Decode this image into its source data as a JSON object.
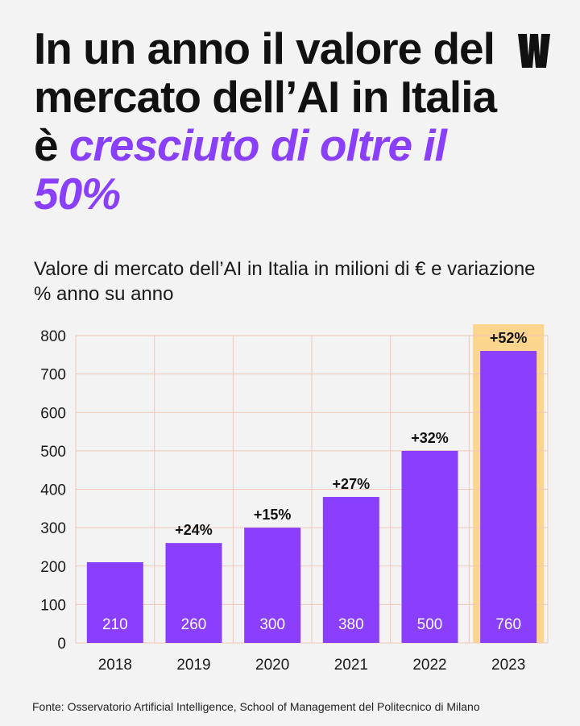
{
  "headline": {
    "part1": "In un anno il valore del mercato dell’AI in Italia è ",
    "highlight": "cresciuto di oltre il 50%"
  },
  "subtitle": "Valore di mercato dell’AI in Italia in milioni di € e variazione % anno su anno",
  "source": "Fonte: Osservatorio Artificial Intelligence, School of Management del Politecnico di Milano",
  "logo_icon": "brand-logo-icon",
  "colors": {
    "accent": "#8a3ffc",
    "bar": "#8a3ffc",
    "highlight_band": "#fbd48e",
    "grid": "#f2c7b8",
    "background": "#f3f3f4"
  },
  "chart_data": {
    "type": "bar",
    "categories": [
      "2018",
      "2019",
      "2020",
      "2021",
      "2022",
      "2023"
    ],
    "values": [
      210,
      260,
      300,
      380,
      500,
      760
    ],
    "value_labels": [
      "210",
      "260",
      "300",
      "380",
      "500",
      "760"
    ],
    "change_labels": [
      "",
      "+24%",
      "+15%",
      "+27%",
      "+32%",
      "+52%"
    ],
    "highlighted_category": "2023",
    "ylim": [
      0,
      800
    ],
    "yticks": [
      0,
      100,
      200,
      300,
      400,
      500,
      600,
      700,
      800
    ],
    "grid": true
  }
}
